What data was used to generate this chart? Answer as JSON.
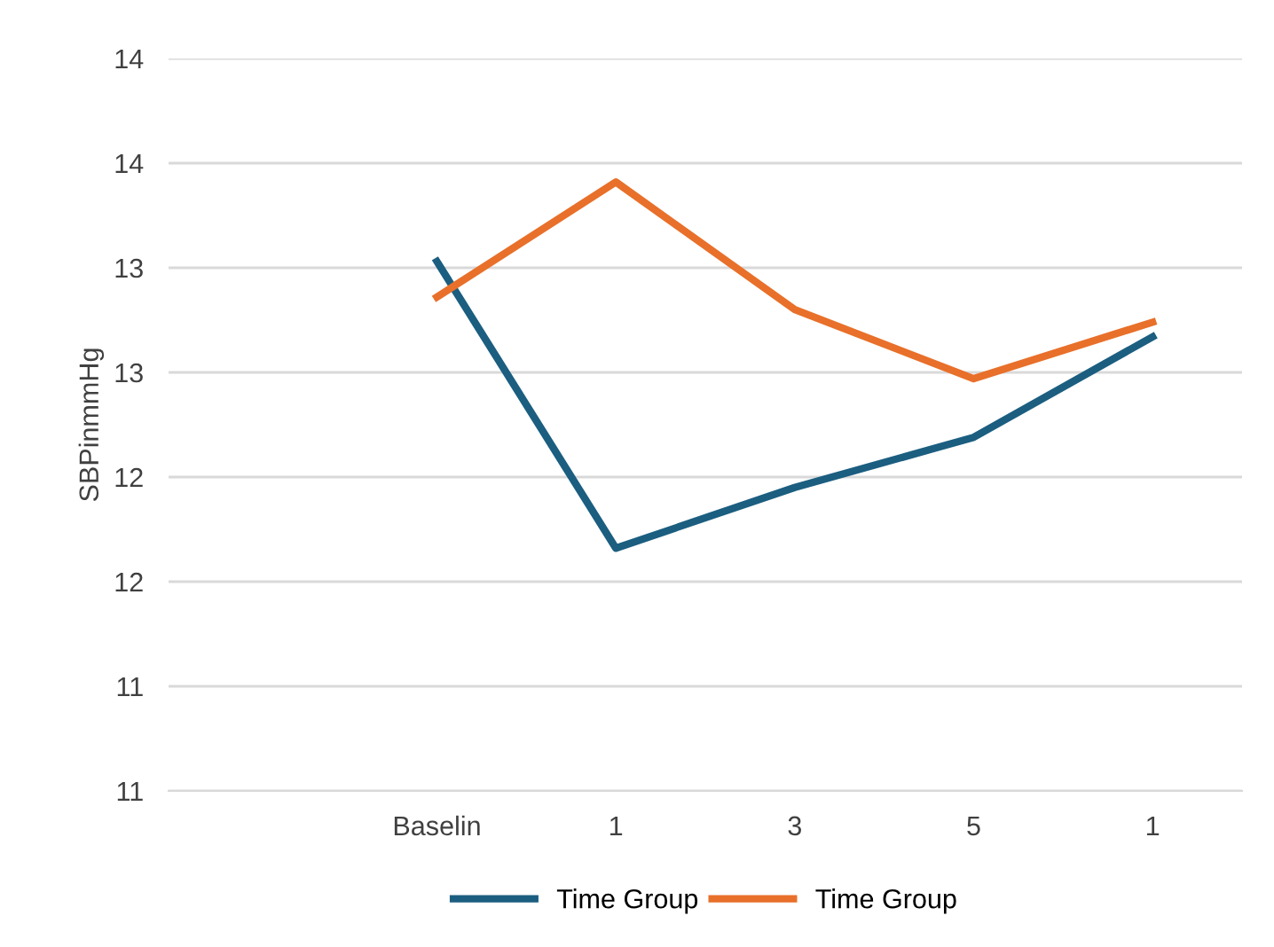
{
  "chart_data": {
    "type": "line",
    "ylabel": "SBPinmmHg",
    "categories": [
      null,
      "Baselin",
      "1",
      "3",
      "5",
      "1"
    ],
    "series": [
      {
        "name": "Time Group",
        "color": "#1b5e80",
        "values": [
          null,
          13.53,
          12.16,
          12.45,
          12.69,
          13.17
        ]
      },
      {
        "name": "Time Group",
        "color": "#e8702a",
        "values": [
          null,
          13.36,
          13.91,
          13.3,
          12.97,
          13.24
        ]
      }
    ],
    "ylim": [
      11.0,
      14.5
    ],
    "yticks": [
      {
        "value": 11.0,
        "label": "11"
      },
      {
        "value": 11.5,
        "label": "11"
      },
      {
        "value": 12.0,
        "label": "12"
      },
      {
        "value": 12.5,
        "label": "12"
      },
      {
        "value": 13.0,
        "label": "13"
      },
      {
        "value": 13.5,
        "label": "13"
      },
      {
        "value": 14.0,
        "label": "14"
      },
      {
        "value": 14.5,
        "label": "14"
      }
    ],
    "grid": "y",
    "legend": "bottom",
    "marker": "none",
    "line_style": "solid"
  }
}
